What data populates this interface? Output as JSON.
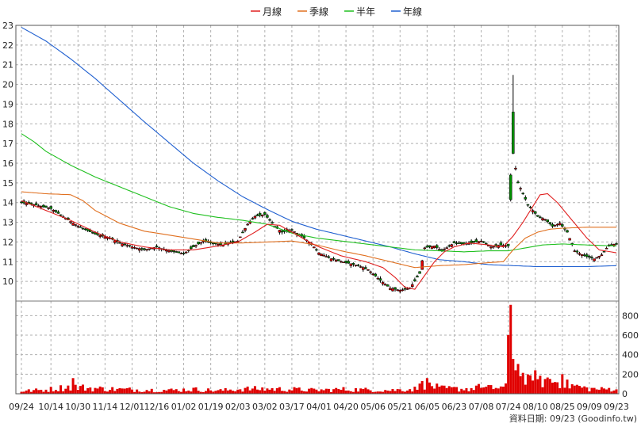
{
  "chart_data": {
    "type": "candlestick",
    "legend": [
      {
        "name": "月線",
        "color": "#e02020"
      },
      {
        "name": "季線",
        "color": "#e07020"
      },
      {
        "name": "半年",
        "color": "#20c020"
      },
      {
        "name": "年線",
        "color": "#2060d0"
      }
    ],
    "legend_position": "top-center",
    "grid": true,
    "price_axis": {
      "ylim": [
        9,
        23
      ],
      "ticks": [
        10,
        11,
        12,
        13,
        14,
        15,
        16,
        17,
        18,
        19,
        20,
        21,
        22,
        23
      ],
      "side": "left"
    },
    "volume_axis": {
      "ylim": [
        0,
        900
      ],
      "ticks": [
        0,
        200,
        400,
        600,
        800
      ],
      "side": "right"
    },
    "x_tick_labels": [
      "09/24",
      "10/14",
      "10/30",
      "11/14",
      "12/01",
      "12/16",
      "01/02",
      "01/19",
      "02/03",
      "03/02",
      "03/17",
      "04/01",
      "04/20",
      "05/06",
      "05/21",
      "06/05",
      "06/23",
      "07/08",
      "07/24",
      "08/10",
      "08/25",
      "09/09",
      "09/23"
    ],
    "x_tick_positions": [
      0,
      12,
      23,
      34,
      45,
      55,
      66,
      77,
      88,
      99,
      110,
      121,
      132,
      143,
      154,
      165,
      176,
      187,
      198,
      209,
      220,
      231,
      242
    ],
    "n_days": 243,
    "price_keys": [
      [
        0,
        14.0
      ],
      [
        5,
        13.9
      ],
      [
        12,
        13.7
      ],
      [
        18,
        13.2
      ],
      [
        23,
        12.8
      ],
      [
        30,
        12.4
      ],
      [
        36,
        12.2
      ],
      [
        40,
        11.95
      ],
      [
        45,
        11.75
      ],
      [
        50,
        11.6
      ],
      [
        55,
        11.75
      ],
      [
        60,
        11.55
      ],
      [
        66,
        11.4
      ],
      [
        70,
        11.75
      ],
      [
        74,
        12.05
      ],
      [
        77,
        11.95
      ],
      [
        82,
        11.85
      ],
      [
        88,
        12.05
      ],
      [
        92,
        12.9
      ],
      [
        95,
        13.3
      ],
      [
        99,
        13.4
      ],
      [
        103,
        12.8
      ],
      [
        106,
        12.5
      ],
      [
        110,
        12.6
      ],
      [
        114,
        12.3
      ],
      [
        118,
        11.9
      ],
      [
        121,
        11.45
      ],
      [
        126,
        11.15
      ],
      [
        132,
        10.95
      ],
      [
        137,
        10.8
      ],
      [
        141,
        10.6
      ],
      [
        146,
        10.05
      ],
      [
        150,
        9.65
      ],
      [
        154,
        9.55
      ],
      [
        158,
        9.65
      ],
      [
        162,
        10.4
      ],
      [
        164,
        11.7
      ],
      [
        168,
        11.8
      ],
      [
        171,
        11.55
      ],
      [
        176,
        11.95
      ],
      [
        180,
        11.9
      ],
      [
        187,
        12.05
      ],
      [
        191,
        11.75
      ],
      [
        195,
        11.85
      ],
      [
        198,
        11.8
      ],
      [
        200,
        16.5
      ],
      [
        202,
        15.0
      ],
      [
        206,
        13.9
      ],
      [
        210,
        13.3
      ],
      [
        213,
        13.15
      ],
      [
        216,
        12.8
      ],
      [
        219,
        12.95
      ],
      [
        222,
        12.5
      ],
      [
        225,
        11.55
      ],
      [
        229,
        11.3
      ],
      [
        233,
        11.15
      ],
      [
        236,
        11.35
      ],
      [
        239,
        11.85
      ],
      [
        242,
        11.9
      ]
    ],
    "ma_month_keys": [
      [
        0,
        14.1
      ],
      [
        10,
        13.6
      ],
      [
        20,
        13.1
      ],
      [
        30,
        12.5
      ],
      [
        40,
        12.0
      ],
      [
        50,
        11.75
      ],
      [
        60,
        11.6
      ],
      [
        70,
        11.6
      ],
      [
        80,
        11.8
      ],
      [
        88,
        12.0
      ],
      [
        95,
        12.5
      ],
      [
        100,
        12.9
      ],
      [
        105,
        12.85
      ],
      [
        110,
        12.5
      ],
      [
        115,
        12.15
      ],
      [
        120,
        11.8
      ],
      [
        130,
        11.3
      ],
      [
        140,
        11.0
      ],
      [
        147,
        10.7
      ],
      [
        152,
        10.2
      ],
      [
        156,
        9.7
      ],
      [
        160,
        9.6
      ],
      [
        164,
        10.3
      ],
      [
        168,
        11.0
      ],
      [
        172,
        11.5
      ],
      [
        176,
        11.75
      ],
      [
        182,
        11.95
      ],
      [
        190,
        11.85
      ],
      [
        196,
        11.75
      ],
      [
        200,
        12.3
      ],
      [
        204,
        13.0
      ],
      [
        208,
        13.8
      ],
      [
        211,
        14.4
      ],
      [
        214,
        14.45
      ],
      [
        218,
        14.0
      ],
      [
        222,
        13.4
      ],
      [
        226,
        12.8
      ],
      [
        230,
        12.2
      ],
      [
        235,
        11.6
      ],
      [
        242,
        11.45
      ]
    ],
    "ma_quarter_keys": [
      [
        0,
        14.55
      ],
      [
        10,
        14.45
      ],
      [
        20,
        14.4
      ],
      [
        25,
        14.1
      ],
      [
        30,
        13.6
      ],
      [
        40,
        12.95
      ],
      [
        50,
        12.55
      ],
      [
        60,
        12.35
      ],
      [
        70,
        12.15
      ],
      [
        80,
        11.95
      ],
      [
        90,
        11.95
      ],
      [
        100,
        12.0
      ],
      [
        110,
        12.05
      ],
      [
        120,
        11.85
      ],
      [
        130,
        11.55
      ],
      [
        140,
        11.3
      ],
      [
        150,
        11.0
      ],
      [
        160,
        10.7
      ],
      [
        170,
        10.8
      ],
      [
        180,
        10.85
      ],
      [
        190,
        10.95
      ],
      [
        196,
        11.0
      ],
      [
        200,
        11.6
      ],
      [
        205,
        12.2
      ],
      [
        210,
        12.5
      ],
      [
        215,
        12.65
      ],
      [
        220,
        12.7
      ],
      [
        230,
        12.75
      ],
      [
        242,
        12.75
      ]
    ],
    "ma_half_keys": [
      [
        0,
        17.5
      ],
      [
        5,
        17.1
      ],
      [
        10,
        16.6
      ],
      [
        20,
        15.9
      ],
      [
        30,
        15.3
      ],
      [
        40,
        14.8
      ],
      [
        50,
        14.3
      ],
      [
        60,
        13.8
      ],
      [
        70,
        13.45
      ],
      [
        80,
        13.25
      ],
      [
        90,
        13.1
      ],
      [
        100,
        12.9
      ],
      [
        110,
        12.45
      ],
      [
        120,
        12.2
      ],
      [
        130,
        12.05
      ],
      [
        140,
        11.9
      ],
      [
        150,
        11.75
      ],
      [
        160,
        11.6
      ],
      [
        170,
        11.55
      ],
      [
        180,
        11.5
      ],
      [
        190,
        11.55
      ],
      [
        198,
        11.55
      ],
      [
        205,
        11.7
      ],
      [
        212,
        11.85
      ],
      [
        220,
        11.9
      ],
      [
        230,
        11.85
      ],
      [
        242,
        11.8
      ]
    ],
    "ma_year_keys": [
      [
        0,
        22.9
      ],
      [
        10,
        22.2
      ],
      [
        20,
        21.3
      ],
      [
        30,
        20.3
      ],
      [
        40,
        19.2
      ],
      [
        50,
        18.1
      ],
      [
        60,
        17.05
      ],
      [
        70,
        16.0
      ],
      [
        80,
        15.1
      ],
      [
        90,
        14.3
      ],
      [
        100,
        13.65
      ],
      [
        110,
        13.05
      ],
      [
        120,
        12.65
      ],
      [
        130,
        12.35
      ],
      [
        140,
        12.05
      ],
      [
        150,
        11.75
      ],
      [
        160,
        11.4
      ],
      [
        170,
        11.1
      ],
      [
        180,
        11.0
      ],
      [
        190,
        10.85
      ],
      [
        200,
        10.8
      ],
      [
        210,
        10.75
      ],
      [
        220,
        10.75
      ],
      [
        230,
        10.75
      ],
      [
        242,
        10.8
      ]
    ],
    "volume_keys": [
      [
        0,
        30
      ],
      [
        10,
        45
      ],
      [
        20,
        80
      ],
      [
        30,
        60
      ],
      [
        40,
        50
      ],
      [
        50,
        45
      ],
      [
        60,
        40
      ],
      [
        70,
        50
      ],
      [
        80,
        35
      ],
      [
        90,
        55
      ],
      [
        99,
        55
      ],
      [
        110,
        50
      ],
      [
        120,
        40
      ],
      [
        130,
        50
      ],
      [
        140,
        45
      ],
      [
        150,
        40
      ],
      [
        160,
        55
      ],
      [
        165,
        120
      ],
      [
        170,
        60
      ],
      [
        180,
        55
      ],
      [
        190,
        65
      ],
      [
        197,
        75
      ],
      [
        199,
        900
      ],
      [
        201,
        380
      ],
      [
        203,
        200
      ],
      [
        206,
        140
      ],
      [
        210,
        120
      ],
      [
        213,
        160
      ],
      [
        216,
        150
      ],
      [
        220,
        110
      ],
      [
        225,
        90
      ],
      [
        230,
        60
      ],
      [
        236,
        50
      ],
      [
        242,
        60
      ]
    ],
    "volume_spikes": [
      [
        21,
        160
      ],
      [
        163,
        130
      ],
      [
        186,
        100
      ],
      [
        199,
        910
      ],
      [
        201,
        240
      ],
      [
        203,
        180
      ],
      [
        209,
        240
      ],
      [
        220,
        200
      ]
    ]
  },
  "footer": {
    "source_label": "資料日期: 09/23 (Goodinfo.tw)"
  }
}
